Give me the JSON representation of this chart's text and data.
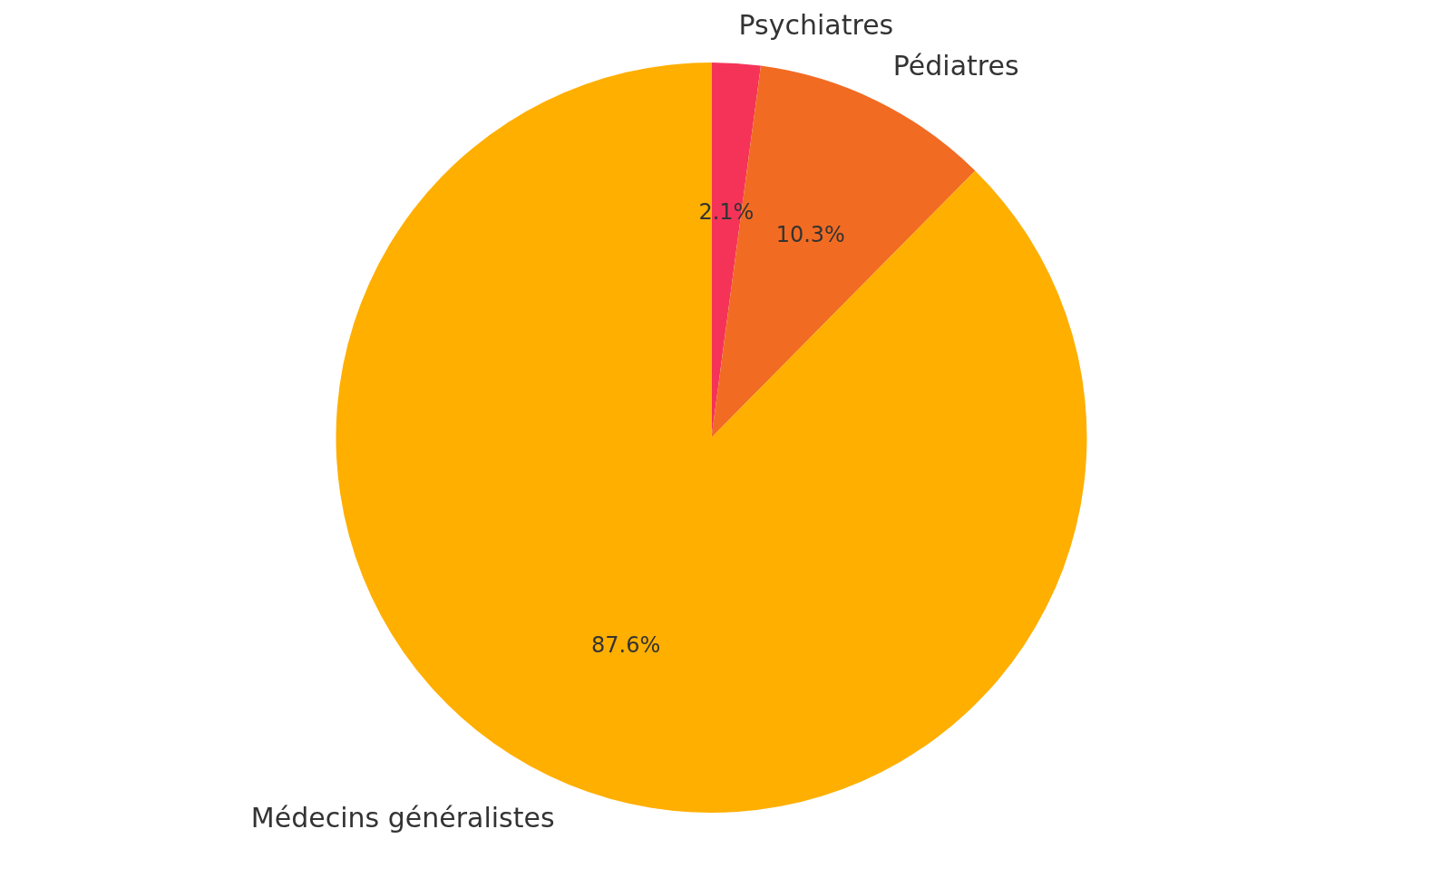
{
  "chart_data": {
    "type": "pie",
    "categories": [
      "Psychiatres",
      "Pédiatres",
      "Médecins généralistes"
    ],
    "values": [
      2.1,
      10.3,
      87.6
    ],
    "colors": [
      "#f53358",
      "#f26b22",
      "#ffaf00"
    ],
    "value_labels": [
      "2.1%",
      "10.3%",
      "87.6%"
    ],
    "legend": false
  }
}
